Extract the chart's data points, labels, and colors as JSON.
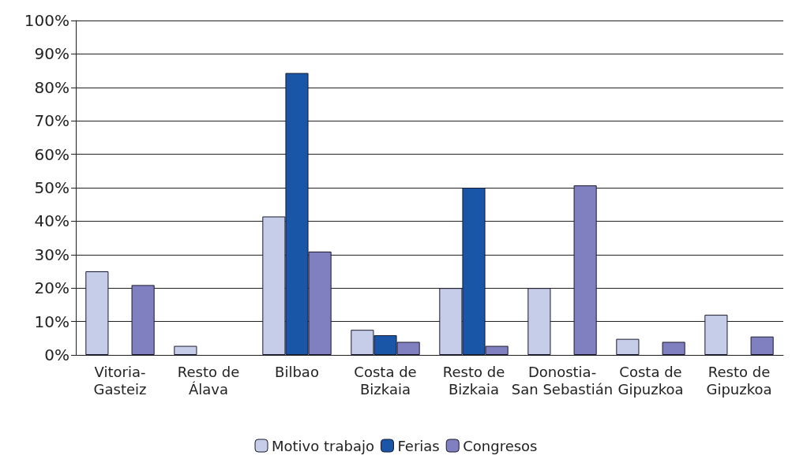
{
  "chart_data": {
    "type": "bar",
    "categories": [
      "Vitoria-\nGasteiz",
      "Resto de\nÁlava",
      "Bilbao",
      "Costa de\nBizkaia",
      "Resto de\nBizkaia",
      "Donostia-\nSan Sebastián",
      "Costa de\nGipuzkoa",
      "Resto de\nGipuzkoa"
    ],
    "series": [
      {
        "name": "Motivo trabajo",
        "color": "#c5cde8",
        "values": [
          25,
          2.7,
          41.4,
          7.5,
          20,
          20,
          4.8,
          12
        ]
      },
      {
        "name": "Ferias",
        "color": "#1a56a8",
        "values": [
          null,
          null,
          84.3,
          5.9,
          50,
          null,
          null,
          null
        ]
      },
      {
        "name": "Congresos",
        "color": "#8080c0",
        "values": [
          20.9,
          null,
          30.9,
          3.9,
          2.7,
          50.7,
          3.9,
          5.5
        ]
      }
    ],
    "ylim": [
      0,
      100
    ],
    "yticks": [
      {
        "value": 0,
        "label": "0%"
      },
      {
        "value": 10,
        "label": "10%"
      },
      {
        "value": 20,
        "label": "20%"
      },
      {
        "value": 30,
        "label": "30%"
      },
      {
        "value": 40,
        "label": "40%"
      },
      {
        "value": 50,
        "label": "50%"
      },
      {
        "value": 60,
        "label": "60%"
      },
      {
        "value": 70,
        "label": "70%"
      },
      {
        "value": 80,
        "label": "80%"
      },
      {
        "value": 90,
        "label": "90%"
      },
      {
        "value": 100,
        "label": "100%"
      }
    ],
    "grid": "y",
    "legend": "bottom"
  }
}
